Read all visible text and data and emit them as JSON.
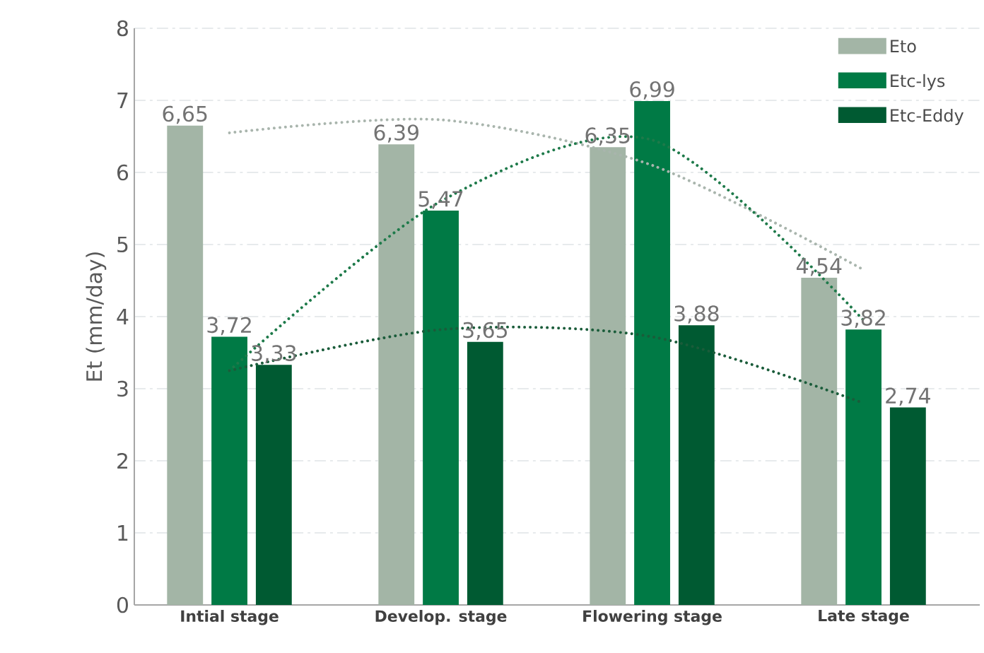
{
  "chart_data": {
    "type": "bar",
    "ylabel": "Et (mm/day)",
    "categories": [
      "Intial stage",
      "Develop. stage",
      "Flowering stage",
      "Late stage"
    ],
    "ylim": [
      0,
      8
    ],
    "yticks": [
      0,
      1,
      2,
      3,
      4,
      5,
      6,
      7,
      8
    ],
    "grid": "y",
    "legend": "top right",
    "series": [
      {
        "name": "Eto",
        "color": "#a3b5a6",
        "values": [
          6.65,
          6.39,
          6.35,
          4.54
        ],
        "value_labels": [
          "6,65",
          "6,39",
          "6,35",
          "4,54"
        ]
      },
      {
        "name": "Etc-lys",
        "color": "#007a45",
        "values": [
          3.72,
          5.47,
          6.99,
          3.82
        ],
        "value_labels": [
          "3,72",
          "5,47",
          "6,99",
          "3,82"
        ]
      },
      {
        "name": "Etc-Eddy",
        "color": "#005a32",
        "values": [
          3.33,
          3.65,
          3.88,
          2.74
        ],
        "value_labels": [
          "3,33",
          "3,65",
          "3,88",
          "2,74"
        ]
      },
      {
        "type": "line",
        "line_style": "dotted",
        "color": "#a9b5ad",
        "values": [
          6.55,
          6.73,
          6.1,
          4.65
        ]
      },
      {
        "type": "line",
        "line_style": "dotted",
        "color": "#1e7a4a",
        "values": [
          3.25,
          5.6,
          6.45,
          3.95
        ]
      },
      {
        "type": "line",
        "line_style": "dotted",
        "color": "#1a5c3a",
        "values": [
          3.25,
          3.82,
          3.72,
          2.8
        ]
      }
    ]
  }
}
